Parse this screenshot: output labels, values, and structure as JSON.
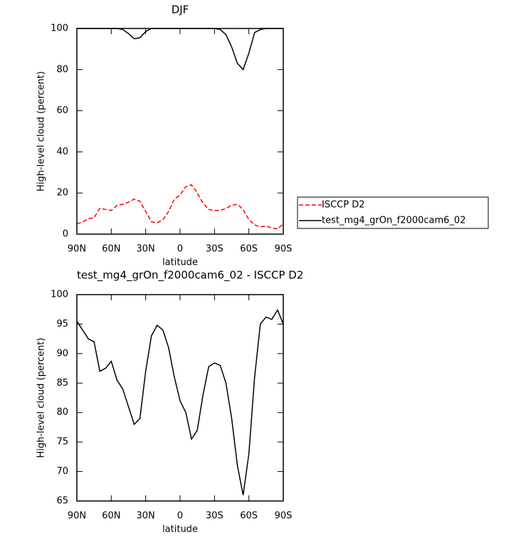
{
  "chart_data": [
    {
      "type": "line",
      "title": "DJF",
      "xlabel": "latitude",
      "ylabel": "High-level cloud (percent)",
      "x": [
        90,
        85,
        80,
        75,
        70,
        65,
        60,
        55,
        50,
        45,
        40,
        35,
        30,
        25,
        20,
        15,
        10,
        5,
        0,
        -5,
        -10,
        -15,
        -20,
        -25,
        -30,
        -35,
        -40,
        -45,
        -50,
        -55,
        -60,
        -65,
        -70,
        -75,
        -80,
        -85,
        -90
      ],
      "xlim": [
        90,
        -90
      ],
      "xticks": [
        {
          "value": 90,
          "label": "90N"
        },
        {
          "value": 60,
          "label": "60N"
        },
        {
          "value": 30,
          "label": "30N"
        },
        0,
        {
          "value": -30,
          "label": "30S"
        },
        {
          "value": -60,
          "label": "60S"
        },
        {
          "value": -90,
          "label": "90S"
        }
      ],
      "ylim": [
        0,
        100
      ],
      "yticks": [
        0,
        20,
        40,
        60,
        80,
        100
      ],
      "grid": false,
      "legend": "right",
      "series": [
        {
          "name": "ISCCP D2",
          "color": "#ff0000",
          "line_style": "dashed",
          "values": [
            5,
            6,
            7.5,
            8,
            12.5,
            12,
            11.5,
            14,
            14.5,
            15.5,
            17,
            16,
            11,
            6,
            5.5,
            7,
            11,
            17,
            19,
            23,
            24,
            20,
            15,
            12,
            11.5,
            11.5,
            12.5,
            14,
            14.5,
            12,
            7,
            4.5,
            3.5,
            4,
            3,
            2.5,
            5
          ]
        },
        {
          "name": "test_mg4_grOn_f2000cam6_02",
          "color": "#000000",
          "line_style": "solid",
          "values": [
            100,
            100,
            100,
            100,
            100,
            100,
            100,
            100,
            99.5,
            97.5,
            95,
            95.5,
            98.5,
            100,
            100,
            100,
            100,
            100,
            100,
            100,
            100,
            100,
            100,
            100,
            100,
            99.5,
            97,
            91,
            83,
            80,
            88,
            98,
            99.5,
            100,
            100,
            100,
            100
          ]
        }
      ]
    },
    {
      "type": "line",
      "title": "test_mg4_grOn_f2000cam6_02 - ISCCP D2",
      "xlabel": "latitude",
      "ylabel": "High-level cloud (percent)",
      "x": [
        90,
        85,
        80,
        75,
        70,
        65,
        60,
        55,
        50,
        45,
        40,
        35,
        30,
        25,
        20,
        15,
        10,
        5,
        0,
        -5,
        -10,
        -15,
        -20,
        -25,
        -30,
        -35,
        -40,
        -45,
        -50,
        -55,
        -60,
        -65,
        -70,
        -75,
        -80,
        -85,
        -90
      ],
      "xlim": [
        90,
        -90
      ],
      "xticks": [
        {
          "value": 90,
          "label": "90N"
        },
        {
          "value": 60,
          "label": "60N"
        },
        {
          "value": 30,
          "label": "30N"
        },
        0,
        {
          "value": -30,
          "label": "30S"
        },
        {
          "value": -60,
          "label": "60S"
        },
        {
          "value": -90,
          "label": "90S"
        }
      ],
      "ylim": [
        65,
        100
      ],
      "yticks": [
        65,
        70,
        75,
        80,
        85,
        90,
        95,
        100
      ],
      "grid": false,
      "series": [
        {
          "color": "#000000",
          "line_style": "solid",
          "values": [
            95.5,
            94,
            92.5,
            92,
            87,
            87.5,
            88.7,
            85.5,
            84,
            81,
            78,
            79,
            87,
            93,
            94.8,
            94,
            91,
            86,
            82,
            80,
            75.5,
            77,
            83,
            87.8,
            88.4,
            88,
            85,
            79,
            71,
            66,
            73,
            86,
            95,
            96.2,
            95.8,
            97.4,
            95
          ]
        }
      ]
    }
  ]
}
